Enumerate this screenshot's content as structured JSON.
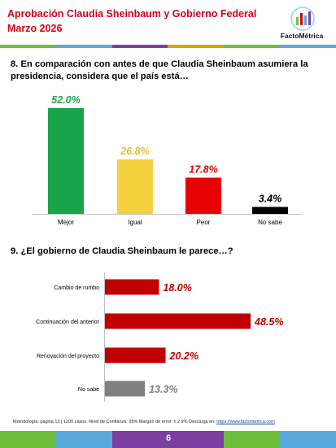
{
  "header": {
    "title": "Aprobación Claudia Sheinbaum y Gobierno Federal",
    "subtitle": "Marzo 2026",
    "logo_text": "FactoMétrica"
  },
  "colors": {
    "stripe": [
      "#6dbf3b",
      "#5aa9dc",
      "#7a3fa0",
      "#d6a400",
      "#6dbf3b",
      "#5aa9dc"
    ],
    "footer": [
      "#6dbf3b",
      "#5aa9dc",
      "#7a3fa0",
      "#7a3fa0",
      "#6dbf3b",
      "#5aa9dc"
    ]
  },
  "chart_data": [
    {
      "type": "bar",
      "title": "8. En comparación con antes de que Claudia Sheinbaum asumiera la presidencia, considera que el país está…",
      "categories": [
        "Mejor",
        "Igual",
        "Peor",
        "No sabe"
      ],
      "values": [
        52.0,
        26.8,
        17.8,
        3.4
      ],
      "labels": [
        "52.0%",
        "26.8%",
        "17.8%",
        "3.4%"
      ],
      "colors": [
        "#1aa34a",
        "#f4d03f",
        "#e60000",
        "#000000"
      ],
      "ylim": [
        0,
        52
      ]
    },
    {
      "type": "bar",
      "orientation": "horizontal",
      "title": "9. ¿El gobierno de Claudia Sheinbaum le parece…?",
      "categories": [
        "Cambió de rumbo",
        "Continuación del anterior",
        "Renovación del proyecto",
        "No sabe"
      ],
      "values": [
        18.0,
        48.5,
        20.2,
        13.3
      ],
      "labels": [
        "18.0%",
        "48.5%",
        "20.2%",
        "13.3%"
      ],
      "colors": [
        "#c00000",
        "#c00000",
        "#c00000",
        "#7f7f7f"
      ],
      "xlim": [
        0,
        48.5
      ]
    }
  ],
  "footer": {
    "methodology": "Metodología: página 13 | 1200 casos. Nivel de Confianza: 95% Margen de error: ± 2.9% Descarga en: ",
    "link": "https://www.factometrica.com",
    "page": "6"
  }
}
